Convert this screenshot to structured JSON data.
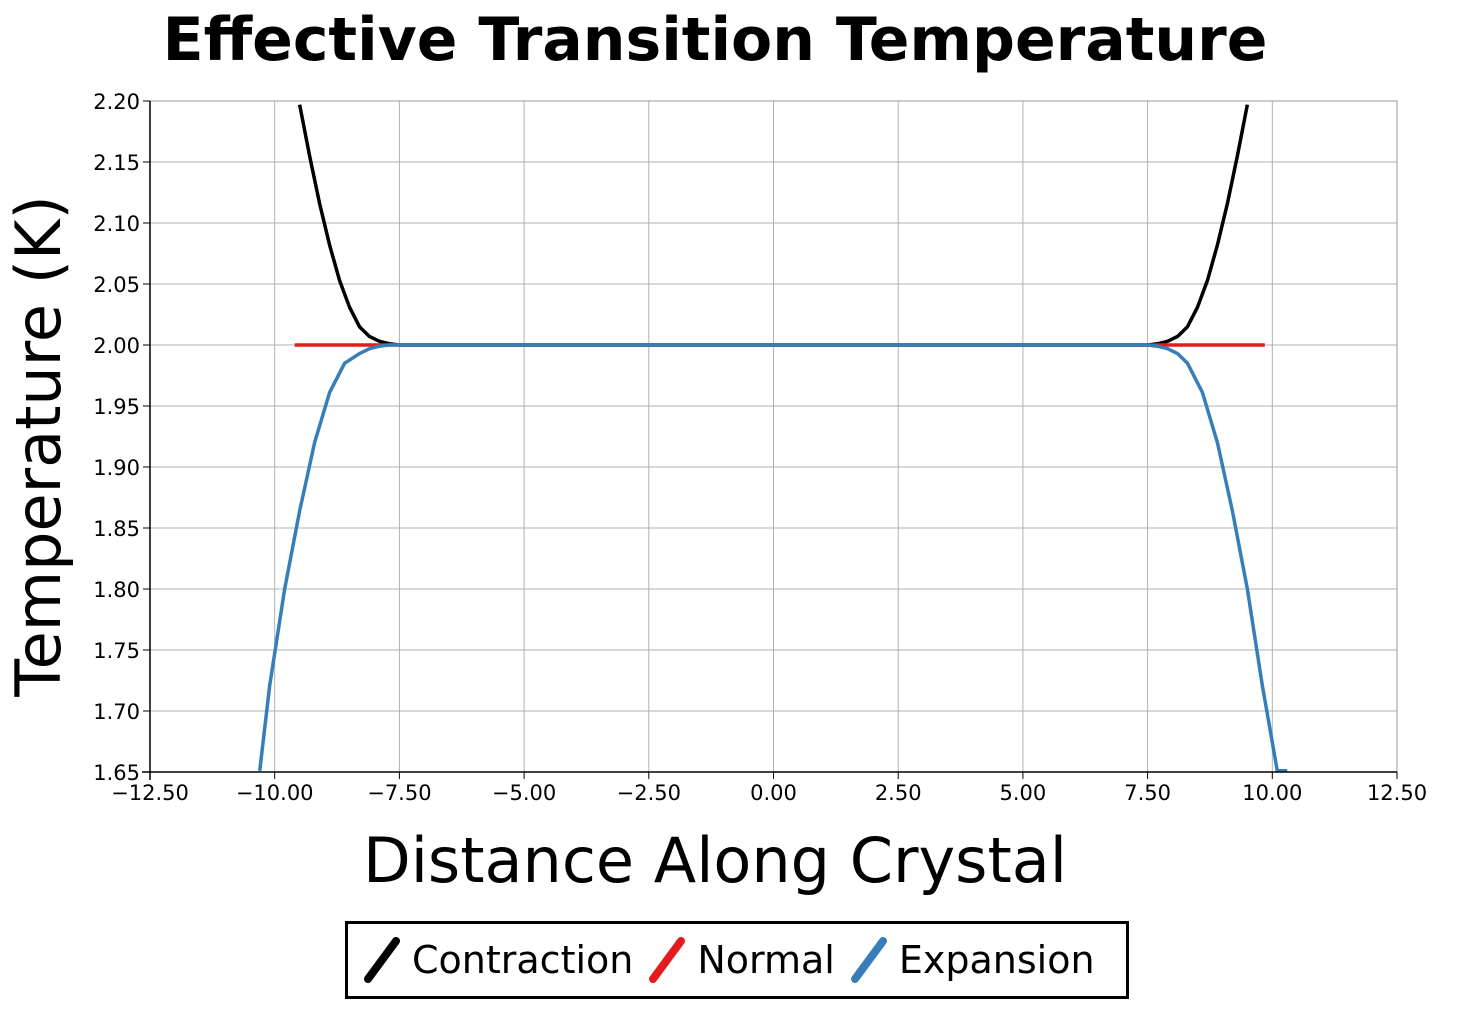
{
  "chart_data": {
    "type": "line",
    "title": "Effective Transition Temperature",
    "xlabel": "Distance Along Crystal",
    "ylabel": "Temperature (K)",
    "xlim": [
      -12.5,
      12.5
    ],
    "ylim": [
      1.65,
      2.2
    ],
    "grid": true,
    "legend_position": "bottom-center",
    "x_ticks": [
      -12.5,
      -10.0,
      -7.5,
      -5.0,
      -2.5,
      0.0,
      2.5,
      5.0,
      7.5,
      10.0,
      12.5
    ],
    "x_tick_labels": [
      "−12.50",
      "−10.00",
      "−7.50",
      "−5.00",
      "−2.50",
      "0.00",
      "2.50",
      "5.00",
      "7.50",
      "10.00",
      "12.50"
    ],
    "y_ticks": [
      1.65,
      1.7,
      1.75,
      1.8,
      1.85,
      1.9,
      1.95,
      2.0,
      2.05,
      2.1,
      2.15,
      2.2
    ],
    "y_tick_labels": [
      "1.65",
      "1.70",
      "1.75",
      "1.80",
      "1.85",
      "1.90",
      "1.95",
      "2.00",
      "2.05",
      "2.10",
      "2.15",
      "2.20"
    ],
    "series": [
      {
        "name": "Contraction",
        "color": "#000000",
        "x": [
          -9.5,
          -9.3,
          -9.1,
          -8.9,
          -8.7,
          -8.5,
          -8.3,
          -8.1,
          -7.9,
          -7.7,
          -7.5,
          -7.0,
          -6.0,
          -5.0,
          -2.5,
          0.0,
          2.5,
          5.0,
          6.0,
          7.0,
          7.5,
          7.7,
          7.9,
          8.1,
          8.3,
          8.5,
          8.7,
          8.9,
          9.1,
          9.3,
          9.5
        ],
        "y": [
          2.197,
          2.155,
          2.116,
          2.082,
          2.053,
          2.031,
          2.015,
          2.007,
          2.003,
          2.001,
          2.0,
          2.0,
          2.0,
          2.0,
          2.0,
          2.0,
          2.0,
          2.0,
          2.0,
          2.0,
          2.0,
          2.001,
          2.003,
          2.007,
          2.015,
          2.031,
          2.053,
          2.082,
          2.116,
          2.155,
          2.197
        ]
      },
      {
        "name": "Normal",
        "color": "#e41a1c",
        "x": [
          -9.6,
          9.85
        ],
        "y": [
          2.0,
          2.0
        ]
      },
      {
        "name": "Expansion",
        "color": "#377eb8",
        "x": [
          -10.3,
          -10.1,
          -9.8,
          -9.5,
          -9.2,
          -8.9,
          -8.6,
          -8.3,
          -8.1,
          -7.9,
          -7.7,
          -7.5,
          -7.0,
          -6.0,
          -5.0,
          -2.5,
          0.0,
          2.5,
          5.0,
          6.0,
          7.0,
          7.5,
          7.7,
          7.9,
          8.1,
          8.3,
          8.6,
          8.9,
          9.2,
          9.5,
          9.8,
          10.1,
          10.3
        ],
        "y": [
          1.651,
          1.721,
          1.8,
          1.864,
          1.92,
          1.961,
          1.985,
          1.993,
          1.997,
          1.999,
          2.0,
          2.0,
          2.0,
          2.0,
          2.0,
          2.0,
          2.0,
          2.0,
          2.0,
          2.0,
          2.0,
          2.0,
          1.999,
          1.997,
          1.993,
          1.985,
          1.961,
          1.92,
          1.864,
          1.8,
          1.721,
          1.651,
          1.651
        ]
      }
    ]
  }
}
